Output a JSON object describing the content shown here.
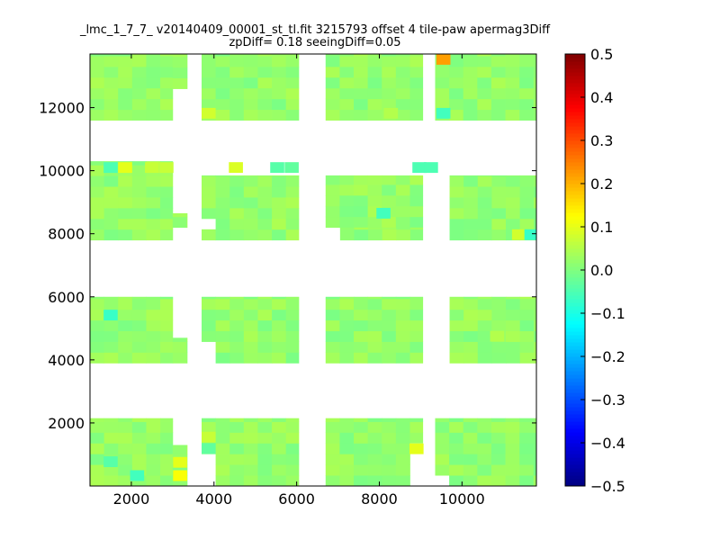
{
  "chart_data": {
    "type": "heatmap",
    "title": "_lmc_1_7_7_ v20140409_00001_st_tl.fit 3215793 offset 4 tile-paw apermag3Diff",
    "subtitle": "zpDiff= 0.18 seeingDiff=0.05",
    "xlabel": "",
    "ylabel": "",
    "xlim": [
      1000,
      11800
    ],
    "ylim": [
      0,
      13700
    ],
    "xticks": [
      2000,
      4000,
      6000,
      8000,
      10000
    ],
    "yticks": [
      2000,
      4000,
      6000,
      8000,
      10000,
      12000
    ],
    "xtick_labels": [
      "2000",
      "4000",
      "6000",
      "8000",
      "10000"
    ],
    "ytick_labels": [
      "2000",
      "4000",
      "6000",
      "8000",
      "10000",
      "12000"
    ],
    "colorbar": {
      "colormap": "jet",
      "vmin": -0.5,
      "vmax": 0.5,
      "ticks": [
        0.5,
        0.4,
        0.3,
        0.2,
        0.1,
        0.0,
        -0.1,
        -0.2,
        -0.3,
        -0.4,
        -0.5
      ],
      "tick_labels": [
        "0.5",
        "0.4",
        "0.3",
        "0.2",
        "0.1",
        "0.0",
        "−0.1",
        "−0.2",
        "−0.3",
        "−0.4",
        "−0.5"
      ]
    },
    "grid": false,
    "cell_size": [
      340,
      340
    ],
    "base_value": 0.02,
    "detectors": [
      {
        "x": [
          1000,
          3000
        ],
        "y": [
          11600,
          13700
        ]
      },
      {
        "x": [
          3000,
          3350
        ],
        "y": [
          12600,
          13700
        ]
      },
      {
        "x": [
          3700,
          6050
        ],
        "y": [
          11600,
          13700
        ]
      },
      {
        "x": [
          6700,
          9050
        ],
        "y": [
          11600,
          13700
        ]
      },
      {
        "x": [
          9350,
          11800
        ],
        "y": [
          11600,
          13700
        ]
      },
      {
        "x": [
          1000,
          3000
        ],
        "y": [
          7800,
          10300
        ]
      },
      {
        "x": [
          3000,
          3350
        ],
        "y": [
          8200,
          8650
        ]
      },
      {
        "x": [
          3700,
          6050
        ],
        "y": [
          7800,
          9850
        ]
      },
      {
        "x": [
          6700,
          9050
        ],
        "y": [
          8200,
          9850
        ]
      },
      {
        "x": [
          7050,
          9050
        ],
        "y": [
          7800,
          8200
        ]
      },
      {
        "x": [
          9700,
          11800
        ],
        "y": [
          7800,
          9850
        ]
      },
      {
        "x": [
          1000,
          3000
        ],
        "y": [
          3900,
          6000
        ]
      },
      {
        "x": [
          3000,
          3350
        ],
        "y": [
          3900,
          4700
        ]
      },
      {
        "x": [
          3700,
          6050
        ],
        "y": [
          3900,
          6000
        ]
      },
      {
        "x": [
          6700,
          9050
        ],
        "y": [
          3900,
          6000
        ]
      },
      {
        "x": [
          9700,
          11800
        ],
        "y": [
          3900,
          6000
        ]
      },
      {
        "x": [
          1000,
          3000
        ],
        "y": [
          0,
          2150
        ]
      },
      {
        "x": [
          3000,
          3350
        ],
        "y": [
          0,
          1300
        ]
      },
      {
        "x": [
          3700,
          6050
        ],
        "y": [
          0,
          2150
        ]
      },
      {
        "x": [
          6700,
          9050
        ],
        "y": [
          0,
          2150
        ]
      },
      {
        "x": [
          9350,
          11800
        ],
        "y": [
          0,
          2150
        ]
      }
    ],
    "holes": [
      {
        "x": [
          3700,
          4050
        ],
        "y": [
          0,
          900
        ]
      },
      {
        "x": [
          3700,
          4050
        ],
        "y": [
          3900,
          4700
        ]
      },
      {
        "x": [
          8700,
          9050
        ],
        "y": [
          0,
          1300
        ]
      },
      {
        "x": [
          9350,
          9700
        ],
        "y": [
          0,
          500
        ]
      },
      {
        "x": [
          3700,
          4050
        ],
        "y": [
          8200,
          8650
        ]
      }
    ],
    "outliers": [
      {
        "x": 9550,
        "y": 13530,
        "value": 0.22
      },
      {
        "x": 9550,
        "y": 11820,
        "value": -0.06
      },
      {
        "x": 3870,
        "y": 11820,
        "value": 0.08
      },
      {
        "x": 8280,
        "y": 11820,
        "value": 0.05
      },
      {
        "x": 1850,
        "y": 10100,
        "value": 0.1
      },
      {
        "x": 2500,
        "y": 10100,
        "value": 0.07
      },
      {
        "x": 2850,
        "y": 10100,
        "value": 0.07
      },
      {
        "x": 1500,
        "y": 10100,
        "value": -0.05
      },
      {
        "x": 4530,
        "y": 10100,
        "value": 0.09
      },
      {
        "x": 5530,
        "y": 10100,
        "value": -0.04
      },
      {
        "x": 5880,
        "y": 10100,
        "value": -0.03
      },
      {
        "x": 8970,
        "y": 10100,
        "value": -0.05
      },
      {
        "x": 9250,
        "y": 10100,
        "value": -0.05
      },
      {
        "x": 8100,
        "y": 8650,
        "value": -0.06
      },
      {
        "x": 11380,
        "y": 7970,
        "value": 0.08
      },
      {
        "x": 11680,
        "y": 7970,
        "value": -0.07
      },
      {
        "x": 1500,
        "y": 5420,
        "value": -0.07
      },
      {
        "x": 10850,
        "y": 4750,
        "value": 0.05
      },
      {
        "x": 1500,
        "y": 770,
        "value": -0.04
      },
      {
        "x": 2140,
        "y": 330,
        "value": -0.06
      },
      {
        "x": 3180,
        "y": 330,
        "value": 0.12
      },
      {
        "x": 3180,
        "y": 750,
        "value": 0.1
      },
      {
        "x": 8900,
        "y": 1180,
        "value": 0.1
      },
      {
        "x": 3870,
        "y": 1550,
        "value": 0.07
      },
      {
        "x": 3870,
        "y": 1190,
        "value": -0.03
      }
    ]
  }
}
